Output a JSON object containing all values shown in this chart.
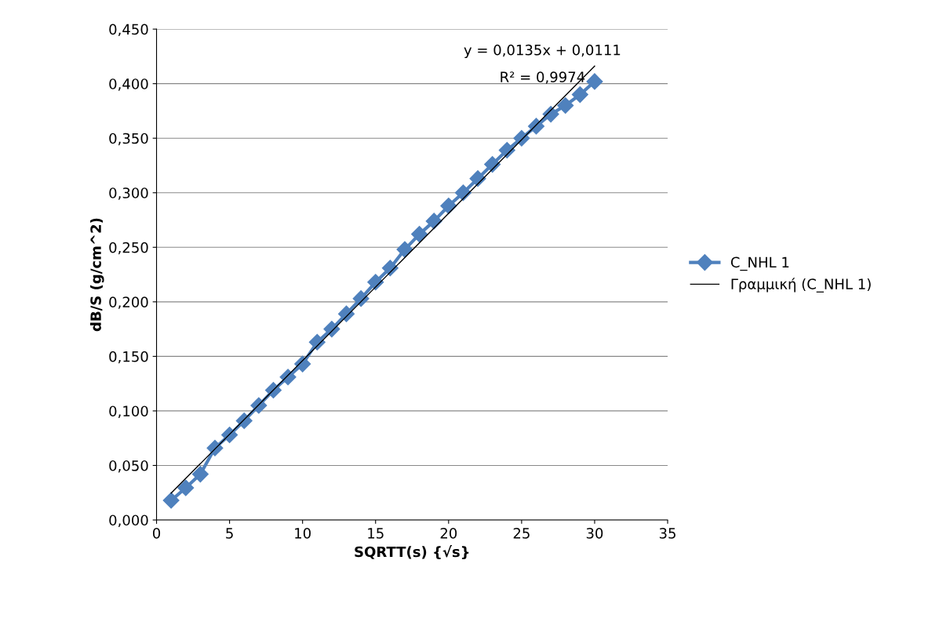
{
  "chart_data": {
    "type": "line",
    "xlabel": "SQRTT(s) {√s}",
    "ylabel": "dB/S (g/cm^2)",
    "series": [
      {
        "name": "C_NHL 1",
        "color": "#4f81bd",
        "marker": "diamond",
        "x": [
          1,
          2,
          3,
          4,
          5,
          6,
          7,
          8,
          9,
          10,
          11,
          12,
          13,
          14,
          15,
          16,
          17,
          18,
          19,
          20,
          21,
          22,
          23,
          24,
          25,
          26,
          27,
          28,
          29,
          30
        ],
        "values": [
          0.018,
          0.0295,
          0.042,
          0.066,
          0.078,
          0.091,
          0.105,
          0.119,
          0.131,
          0.143,
          0.163,
          0.175,
          0.189,
          0.203,
          0.218,
          0.231,
          0.248,
          0.262,
          0.274,
          0.288,
          0.3,
          0.313,
          0.326,
          0.339,
          0.35,
          0.361,
          0.372,
          0.38,
          0.39,
          0.402
        ]
      },
      {
        "name": "Γραμμική (C_NHL 1)",
        "color": "#000000",
        "marker": "none",
        "x": [
          1,
          30
        ],
        "values": [
          0.0246,
          0.4161
        ]
      }
    ],
    "annotations": [
      "y = 0,0135x + 0,0111",
      "R² = 0,9974"
    ],
    "xlim": [
      0,
      35
    ],
    "xticks": [
      0,
      5,
      10,
      15,
      20,
      25,
      30,
      35
    ],
    "ylim": [
      0,
      0.45
    ],
    "yticks": [
      {
        "value": 0,
        "label": "0,000"
      },
      {
        "value": 0.05,
        "label": "0,050"
      },
      {
        "value": 0.1,
        "label": "0,100"
      },
      {
        "value": 0.15,
        "label": "0,150"
      },
      {
        "value": 0.2,
        "label": "0,200"
      },
      {
        "value": 0.25,
        "label": "0,250"
      },
      {
        "value": 0.3,
        "label": "0,300"
      },
      {
        "value": 0.35,
        "label": "0,350"
      },
      {
        "value": 0.4,
        "label": "0,400"
      },
      {
        "value": 0.45,
        "label": "0,450"
      }
    ],
    "grid": "y",
    "legend": "right"
  }
}
